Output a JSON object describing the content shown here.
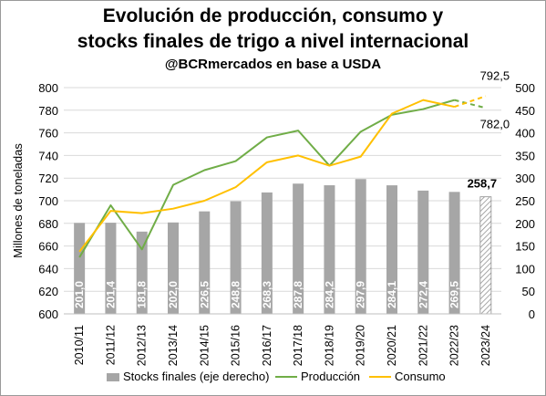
{
  "chart_data": {
    "type": "bar+line",
    "title": "Evolución de producción, consumo y",
    "title_line2": "stocks finales de trigo a nivel internacional",
    "subtitle": "@BCRmercados en base a USDA",
    "ylabel": "Millones de toneladas",
    "y_left_lim": [
      600,
      800
    ],
    "y_left_ticks": [
      600,
      620,
      640,
      660,
      680,
      700,
      720,
      740,
      760,
      780,
      800
    ],
    "y_right_lim": [
      0,
      500
    ],
    "y_right_ticks": [
      0,
      50,
      100,
      150,
      200,
      250,
      300,
      350,
      400,
      450,
      500
    ],
    "categories": [
      "2010/11",
      "2011/12",
      "2012/13",
      "2013/14",
      "2014/15",
      "2015/16",
      "2016/17",
      "2017/18",
      "2018/19",
      "2019/20",
      "2020/21",
      "2021/22",
      "2022/23",
      "2023/24"
    ],
    "series": [
      {
        "name": "Stocks finales (eje derecho)",
        "type": "bar",
        "axis": "right",
        "color": "#a6a6a6",
        "values": [
          201.0,
          201.4,
          181.8,
          202.0,
          226.5,
          248.8,
          268.3,
          287.8,
          284.2,
          297.9,
          284.1,
          272.4,
          269.5,
          258.7
        ],
        "labels": [
          "201,0",
          "201,4",
          "181,8",
          "202,0",
          "226,5",
          "248,8",
          "268,3",
          "287,8",
          "284,2",
          "297,9",
          "284,1",
          "272,4",
          "269,5",
          "258,7"
        ],
        "last_is_projection": true
      },
      {
        "name": "Producción",
        "type": "line",
        "axis": "left",
        "color": "#70ad47",
        "values": [
          650,
          696,
          657,
          714,
          727,
          735,
          756,
          762,
          731,
          761,
          776,
          781,
          789,
          782.0
        ],
        "last_is_projection": true
      },
      {
        "name": "Consumo",
        "type": "line",
        "axis": "left",
        "color": "#ffc000",
        "values": [
          655,
          691,
          689,
          693,
          700,
          712,
          734,
          740,
          731,
          739,
          777,
          789,
          783,
          792.5
        ],
        "last_is_projection": true
      }
    ],
    "annotations": [
      "792,5",
      "782,0"
    ],
    "legend": "bottom",
    "grid": true
  }
}
